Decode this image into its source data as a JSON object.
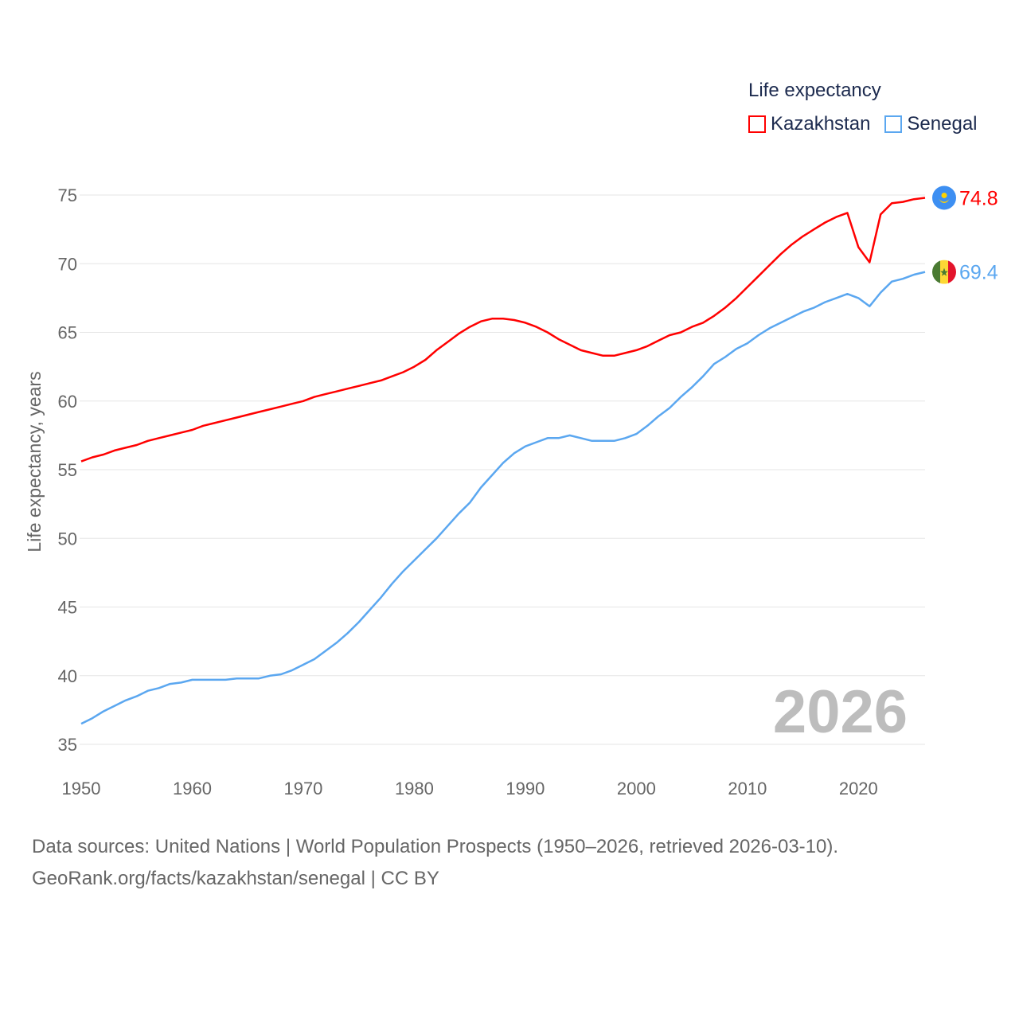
{
  "chart_data": {
    "type": "line",
    "title": "Life expectancy",
    "ylabel": "Life expectancy, years",
    "xlabel": "",
    "xlim": [
      1950,
      2026
    ],
    "ylim": [
      35,
      75
    ],
    "x_ticks": [
      "1950",
      "1960",
      "1970",
      "1980",
      "1990",
      "2000",
      "2010",
      "2020"
    ],
    "y_ticks": [
      "35",
      "40",
      "45",
      "50",
      "55",
      "60",
      "65",
      "70",
      "75"
    ],
    "grid": true,
    "legend_position": "top-right",
    "year_watermark": "2026",
    "series": [
      {
        "name": "Kazakhstan",
        "color": "#ff0000",
        "end_label": "74.8",
        "flag_icon": "kazakhstan-flag-icon",
        "values": [
          55.6,
          55.9,
          56.1,
          56.4,
          56.6,
          56.8,
          57.1,
          57.3,
          57.5,
          57.7,
          57.9,
          58.2,
          58.4,
          58.6,
          58.8,
          59.0,
          59.2,
          59.4,
          59.6,
          59.8,
          60.0,
          60.3,
          60.5,
          60.7,
          60.9,
          61.1,
          61.3,
          61.5,
          61.8,
          62.1,
          62.5,
          63.0,
          63.7,
          64.3,
          64.9,
          65.4,
          65.8,
          66.0,
          66.0,
          65.9,
          65.7,
          65.4,
          65.0,
          64.5,
          64.1,
          63.7,
          63.5,
          63.3,
          63.3,
          63.5,
          63.7,
          64.0,
          64.4,
          64.8,
          65.0,
          65.4,
          65.7,
          66.2,
          66.8,
          67.5,
          68.3,
          69.1,
          69.9,
          70.7,
          71.4,
          72.0,
          72.5,
          73.0,
          73.4,
          73.7,
          71.2,
          70.1,
          73.6,
          74.4,
          74.5,
          74.7,
          74.8
        ]
      },
      {
        "name": "Senegal",
        "color": "#5ba7f0",
        "end_label": "69.4",
        "flag_icon": "senegal-flag-icon",
        "values": [
          36.5,
          36.9,
          37.4,
          37.8,
          38.2,
          38.5,
          38.9,
          39.1,
          39.4,
          39.5,
          39.7,
          39.7,
          39.7,
          39.7,
          39.8,
          39.8,
          39.8,
          40.0,
          40.1,
          40.4,
          40.8,
          41.2,
          41.8,
          42.4,
          43.1,
          43.9,
          44.8,
          45.7,
          46.7,
          47.6,
          48.4,
          49.2,
          50.0,
          50.9,
          51.8,
          52.6,
          53.7,
          54.6,
          55.5,
          56.2,
          56.7,
          57.0,
          57.3,
          57.3,
          57.5,
          57.3,
          57.1,
          57.1,
          57.1,
          57.3,
          57.6,
          58.2,
          58.9,
          59.5,
          60.3,
          61.0,
          61.8,
          62.7,
          63.2,
          63.8,
          64.2,
          64.8,
          65.3,
          65.7,
          66.1,
          66.5,
          66.8,
          67.2,
          67.5,
          67.8,
          67.5,
          66.9,
          67.9,
          68.7,
          68.9,
          69.2,
          69.4
        ]
      }
    ]
  },
  "footer": {
    "line1": "Data sources: United Nations | World Population Prospects (1950–2026, retrieved 2026-03-10).",
    "line2": "GeoRank.org/facts/kazakhstan/senegal | CC BY"
  }
}
